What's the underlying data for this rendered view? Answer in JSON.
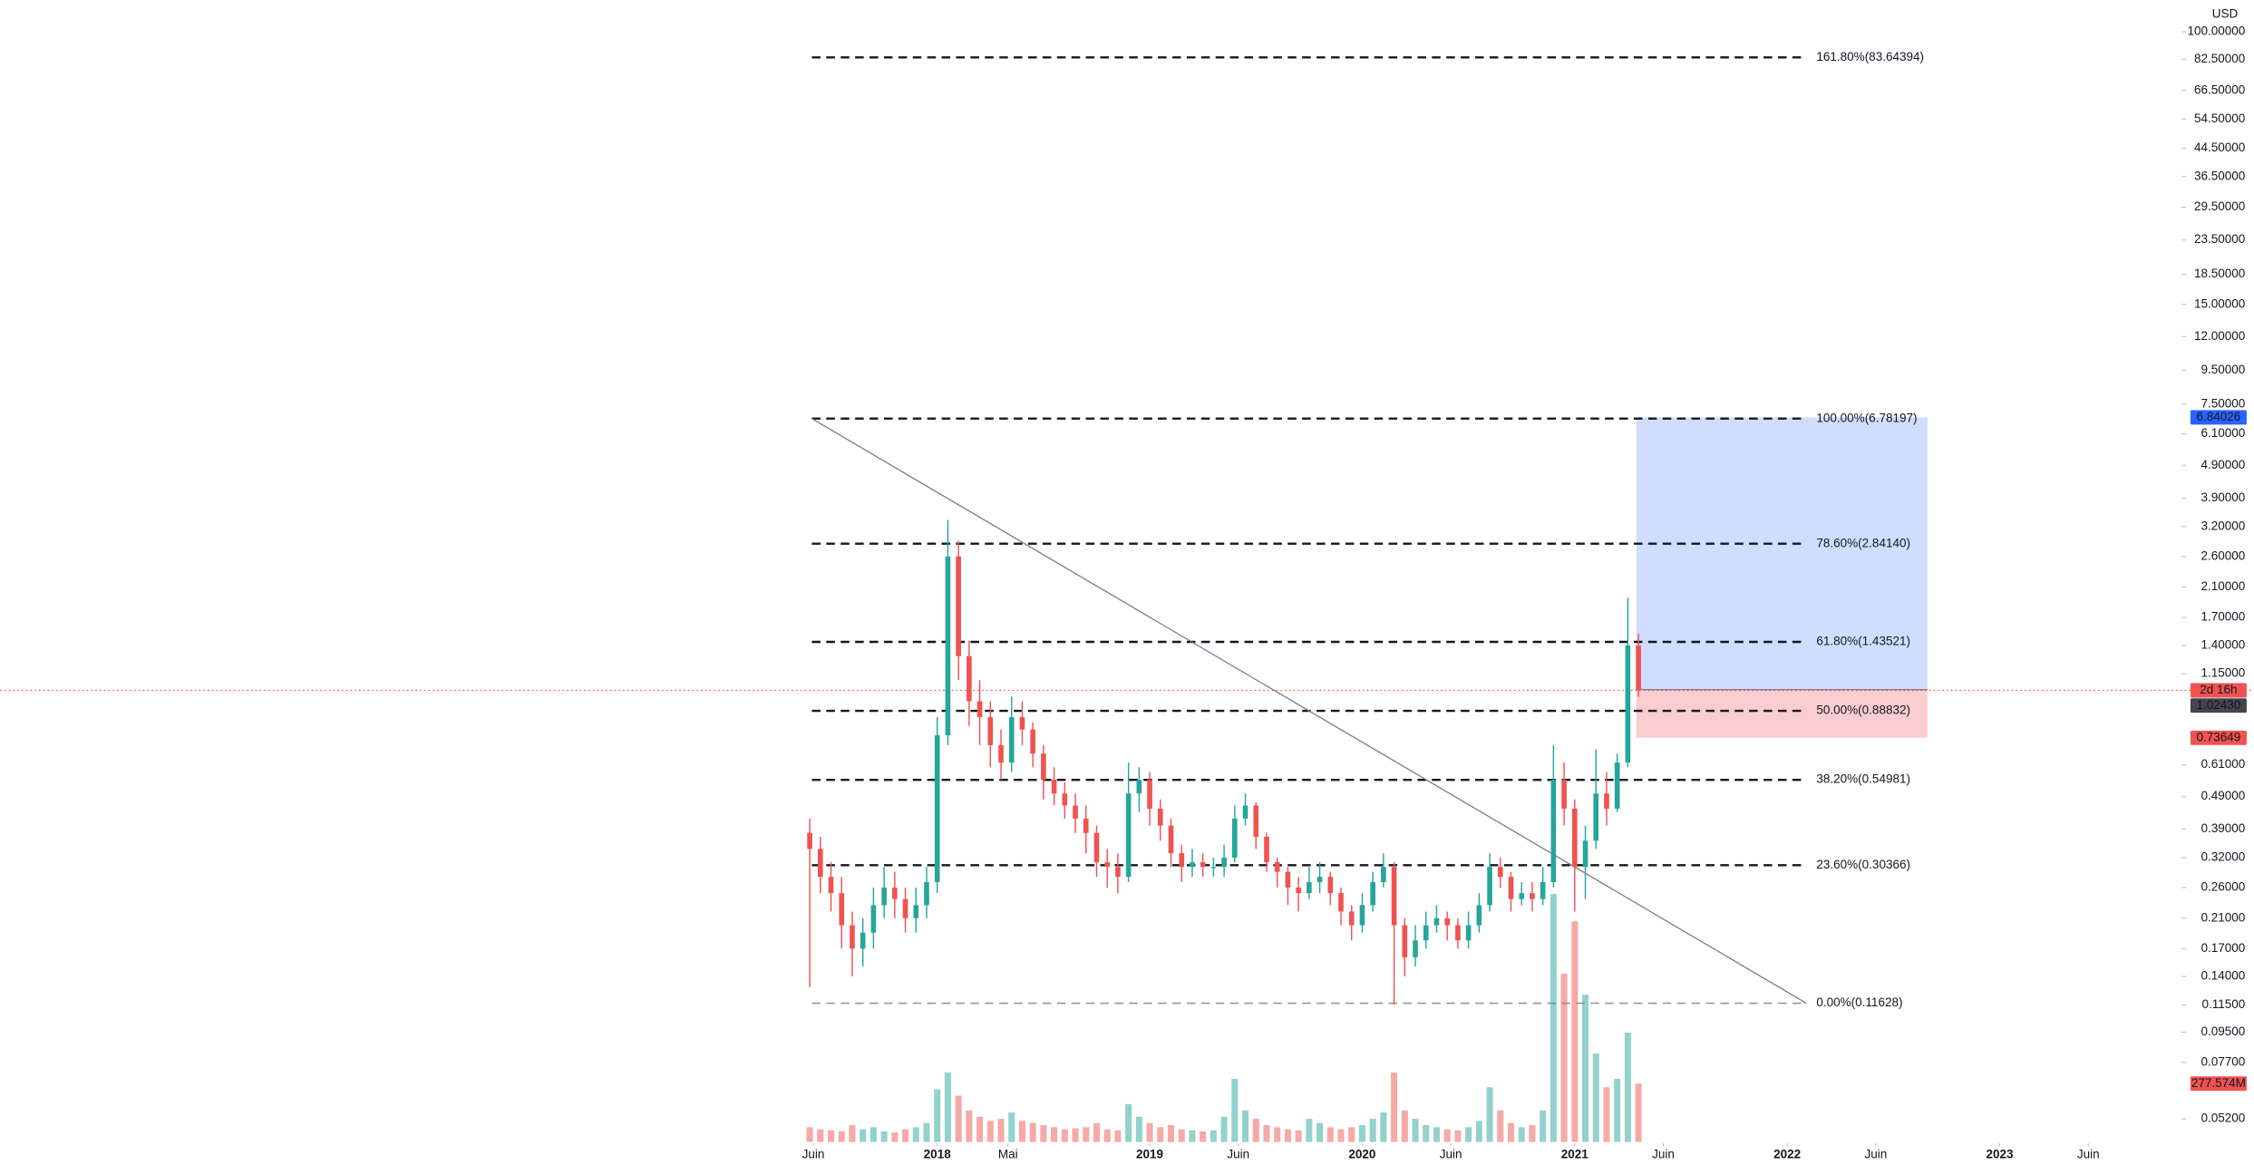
{
  "chart_data": {
    "type": "candlestick",
    "currency": "USD",
    "log_scale": true,
    "up_color": "#26a69a",
    "down_color": "#ef5350",
    "xlim": [
      2013.59,
      2023.85
    ],
    "ylim": [
      0.0452,
      124.7
    ],
    "x": [
      2017.4,
      2017.45,
      2017.5,
      2017.55,
      2017.6,
      2017.65,
      2017.7,
      2017.75,
      2017.8,
      2017.85,
      2017.9,
      2017.95,
      2018.0,
      2018.05,
      2018.1,
      2018.15,
      2018.2,
      2018.25,
      2018.3,
      2018.35,
      2018.4,
      2018.45,
      2018.5,
      2018.55,
      2018.6,
      2018.65,
      2018.7,
      2018.75,
      2018.8,
      2018.85,
      2018.9,
      2018.95,
      2019.0,
      2019.05,
      2019.1,
      2019.15,
      2019.2,
      2019.25,
      2019.3,
      2019.35,
      2019.4,
      2019.45,
      2019.5,
      2019.55,
      2019.6,
      2019.65,
      2019.7,
      2019.75,
      2019.8,
      2019.85,
      2019.9,
      2019.95,
      2020.0,
      2020.05,
      2020.1,
      2020.15,
      2020.2,
      2020.25,
      2020.3,
      2020.35,
      2020.4,
      2020.45,
      2020.5,
      2020.55,
      2020.6,
      2020.65,
      2020.7,
      2020.75,
      2020.8,
      2020.85,
      2020.9,
      2020.95,
      2021.0,
      2021.05,
      2021.1,
      2021.15,
      2021.2,
      2021.25,
      2021.3
    ],
    "open": [
      0.38,
      0.34,
      0.28,
      0.25,
      0.2,
      0.17,
      0.19,
      0.23,
      0.26,
      0.24,
      0.21,
      0.23,
      0.27,
      0.75,
      2.6,
      1.3,
      0.95,
      0.85,
      0.7,
      0.62,
      0.85,
      0.78,
      0.66,
      0.55,
      0.5,
      0.46,
      0.42,
      0.38,
      0.31,
      0.3,
      0.28,
      0.5,
      0.55,
      0.45,
      0.4,
      0.33,
      0.3,
      0.31,
      0.3,
      0.3,
      0.32,
      0.42,
      0.46,
      0.37,
      0.31,
      0.29,
      0.26,
      0.25,
      0.27,
      0.28,
      0.25,
      0.22,
      0.2,
      0.23,
      0.27,
      0.3,
      0.2,
      0.16,
      0.18,
      0.2,
      0.21,
      0.2,
      0.18,
      0.2,
      0.23,
      0.3,
      0.28,
      0.24,
      0.25,
      0.24,
      0.27,
      0.55,
      0.45,
      0.3,
      0.36,
      0.5,
      0.45,
      0.62,
      1.4
    ],
    "high": [
      0.42,
      0.37,
      0.31,
      0.28,
      0.22,
      0.21,
      0.26,
      0.3,
      0.29,
      0.26,
      0.26,
      0.3,
      0.85,
      3.35,
      2.9,
      1.45,
      1.1,
      0.95,
      0.78,
      0.98,
      0.95,
      0.82,
      0.7,
      0.6,
      0.54,
      0.5,
      0.46,
      0.4,
      0.34,
      0.33,
      0.62,
      0.6,
      0.58,
      0.48,
      0.42,
      0.35,
      0.34,
      0.33,
      0.32,
      0.35,
      0.46,
      0.5,
      0.47,
      0.38,
      0.32,
      0.3,
      0.28,
      0.3,
      0.31,
      0.29,
      0.26,
      0.23,
      0.25,
      0.29,
      0.33,
      0.31,
      0.21,
      0.2,
      0.22,
      0.23,
      0.22,
      0.21,
      0.22,
      0.25,
      0.33,
      0.32,
      0.29,
      0.27,
      0.27,
      0.3,
      0.7,
      0.62,
      0.48,
      0.4,
      0.68,
      0.58,
      0.66,
      1.95,
      1.52
    ],
    "low": [
      0.13,
      0.25,
      0.22,
      0.17,
      0.14,
      0.15,
      0.17,
      0.21,
      0.21,
      0.19,
      0.19,
      0.21,
      0.25,
      0.7,
      1.1,
      0.8,
      0.7,
      0.6,
      0.55,
      0.58,
      0.7,
      0.6,
      0.48,
      0.46,
      0.42,
      0.38,
      0.33,
      0.28,
      0.26,
      0.25,
      0.27,
      0.44,
      0.4,
      0.36,
      0.3,
      0.27,
      0.28,
      0.28,
      0.28,
      0.28,
      0.31,
      0.4,
      0.34,
      0.29,
      0.26,
      0.23,
      0.22,
      0.24,
      0.25,
      0.23,
      0.2,
      0.18,
      0.19,
      0.22,
      0.26,
      0.115,
      0.14,
      0.15,
      0.17,
      0.19,
      0.18,
      0.17,
      0.17,
      0.19,
      0.22,
      0.26,
      0.22,
      0.23,
      0.22,
      0.23,
      0.26,
      0.4,
      0.22,
      0.24,
      0.34,
      0.4,
      0.44,
      0.6,
      0.98
    ],
    "close": [
      0.34,
      0.28,
      0.25,
      0.2,
      0.17,
      0.19,
      0.23,
      0.26,
      0.24,
      0.21,
      0.23,
      0.27,
      0.75,
      2.6,
      1.3,
      0.95,
      0.85,
      0.7,
      0.62,
      0.85,
      0.78,
      0.66,
      0.55,
      0.5,
      0.46,
      0.42,
      0.38,
      0.31,
      0.3,
      0.28,
      0.5,
      0.55,
      0.45,
      0.4,
      0.33,
      0.3,
      0.31,
      0.3,
      0.3,
      0.32,
      0.42,
      0.46,
      0.37,
      0.31,
      0.29,
      0.26,
      0.25,
      0.27,
      0.28,
      0.25,
      0.22,
      0.2,
      0.23,
      0.27,
      0.3,
      0.2,
      0.16,
      0.18,
      0.2,
      0.21,
      0.2,
      0.18,
      0.2,
      0.23,
      0.3,
      0.28,
      0.24,
      0.25,
      0.24,
      0.27,
      0.55,
      0.45,
      0.3,
      0.36,
      0.5,
      0.45,
      0.62,
      1.4,
      1.0243
    ],
    "volume": [
      70,
      60,
      55,
      50,
      80,
      60,
      70,
      50,
      45,
      60,
      70,
      90,
      250,
      330,
      220,
      150,
      120,
      100,
      110,
      140,
      100,
      90,
      80,
      70,
      60,
      65,
      70,
      90,
      60,
      55,
      180,
      120,
      90,
      70,
      80,
      60,
      55,
      50,
      55,
      120,
      300,
      150,
      110,
      80,
      70,
      60,
      55,
      110,
      90,
      70,
      60,
      70,
      80,
      110,
      140,
      330,
      150,
      110,
      80,
      70,
      60,
      55,
      70,
      100,
      260,
      150,
      90,
      70,
      80,
      150,
      1180,
      800,
      1050,
      700,
      420,
      260,
      300,
      520,
      277.574
    ],
    "last_price_label": "1.02430",
    "last_volume_label": "277.574M",
    "countdown": "2d 16h",
    "yticks": [
      {
        "value": 100,
        "label": "100.00000"
      },
      {
        "value": 82.5,
        "label": "82.50000"
      },
      {
        "value": 66.5,
        "label": "66.50000"
      },
      {
        "value": 54.5,
        "label": "54.50000"
      },
      {
        "value": 44.5,
        "label": "44.50000"
      },
      {
        "value": 36.5,
        "label": "36.50000"
      },
      {
        "value": 29.5,
        "label": "29.50000"
      },
      {
        "value": 23.5,
        "label": "23.50000"
      },
      {
        "value": 18.5,
        "label": "18.50000"
      },
      {
        "value": 15,
        "label": "15.00000"
      },
      {
        "value": 12,
        "label": "12.00000"
      },
      {
        "value": 9.5,
        "label": "9.50000"
      },
      {
        "value": 7.5,
        "label": "7.50000"
      },
      {
        "value": 6.1,
        "label": "6.10000"
      },
      {
        "value": 4.9,
        "label": "4.90000"
      },
      {
        "value": 3.9,
        "label": "3.90000"
      },
      {
        "value": 3.2,
        "label": "3.20000"
      },
      {
        "value": 2.6,
        "label": "2.60000"
      },
      {
        "value": 2.1,
        "label": "2.10000"
      },
      {
        "value": 1.7,
        "label": "1.70000"
      },
      {
        "value": 1.4,
        "label": "1.40000"
      },
      {
        "value": 1.15,
        "label": "1.15000"
      },
      {
        "value": 0.61,
        "label": "0.61000"
      },
      {
        "value": 0.49,
        "label": "0.49000"
      },
      {
        "value": 0.39,
        "label": "0.39000"
      },
      {
        "value": 0.32,
        "label": "0.32000"
      },
      {
        "value": 0.26,
        "label": "0.26000"
      },
      {
        "value": 0.21,
        "label": "0.21000"
      },
      {
        "value": 0.17,
        "label": "0.17000"
      },
      {
        "value": 0.14,
        "label": "0.14000"
      },
      {
        "value": 0.115,
        "label": "0.11500"
      },
      {
        "value": 0.095,
        "label": "0.09500"
      },
      {
        "value": 0.077,
        "label": "0.07700"
      },
      {
        "value": 0.052,
        "label": "0.05200"
      }
    ],
    "xticks": [
      {
        "value": 2017.417,
        "label": "Juin"
      },
      {
        "value": 2018,
        "label": "2018"
      },
      {
        "value": 2018.333,
        "label": "Mai"
      },
      {
        "value": 2019,
        "label": "2019"
      },
      {
        "value": 2019.417,
        "label": "Juin"
      },
      {
        "value": 2020,
        "label": "2020"
      },
      {
        "value": 2020.417,
        "label": "Juin"
      },
      {
        "value": 2021,
        "label": "2021"
      },
      {
        "value": 2021.417,
        "label": "Juin"
      },
      {
        "value": 2022,
        "label": "2022"
      },
      {
        "value": 2022.417,
        "label": "Juin"
      },
      {
        "value": 2023,
        "label": "2023"
      },
      {
        "value": 2023.417,
        "label": "Juin"
      }
    ],
    "fibonacci": {
      "x": [
        2017.41,
        2022.09
      ],
      "color": "#131722",
      "base_color": "#9598a1",
      "levels": [
        {
          "value": 83.64394,
          "label": "161.80%(83.64394)"
        },
        {
          "value": 6.78197,
          "label": "100.00%(6.78197)"
        },
        {
          "value": 2.8414,
          "label": "78.60%(2.84140)"
        },
        {
          "value": 1.43521,
          "label": "61.80%(1.43521)"
        },
        {
          "value": 0.88832,
          "label": "50.00%(0.88832)"
        },
        {
          "value": 0.54981,
          "label": "38.20%(0.54981)"
        },
        {
          "value": 0.30366,
          "label": "23.60%(0.30366)"
        },
        {
          "value": 0.11628,
          "label": "0.00%(0.11628)"
        }
      ]
    },
    "position": {
      "x": [
        2021.29,
        2022.66
      ],
      "entry": 1.03,
      "target": 6.84026,
      "stop": 0.73649,
      "target_color": "#2962ff",
      "stop_color": "#f23645"
    }
  }
}
